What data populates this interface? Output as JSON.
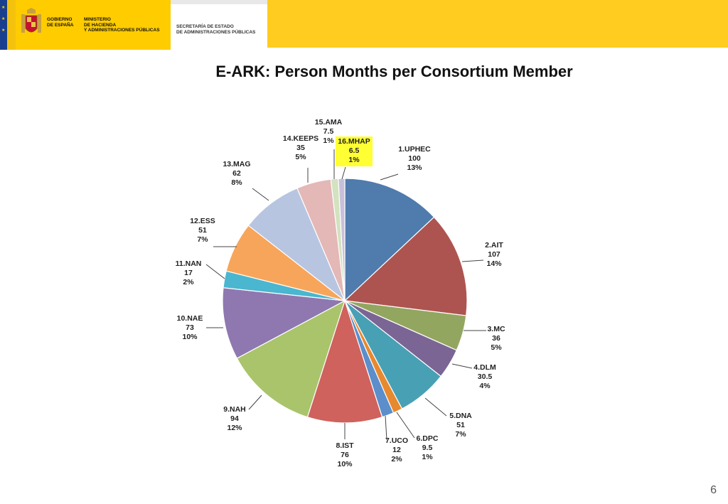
{
  "header": {
    "gov_line1": "GOBIERNO",
    "gov_line2": "DE ESPAÑA",
    "min_line1": "MINISTERIO",
    "min_line2": "DE HACIENDA",
    "min_line3": "Y ADMINISTRACIONES PÚBLICAS",
    "sec_line1": "SECRETARÍA DE ESTADO",
    "sec_line2": "DE ADMINISTRACIONES PÚBLICAS",
    "colors": {
      "yellow": "#ffcc00",
      "red": "#c8102e",
      "eu_blue": "#1a3f8f"
    }
  },
  "page_number": "6",
  "chart_data": {
    "type": "pie",
    "title": "E-ARK: Person Months per Consortium Member",
    "slices": [
      {
        "label": "1.UPHEC",
        "value": 100,
        "pct": "13%",
        "color": "#4f7bad"
      },
      {
        "label": "2.AIT",
        "value": 107,
        "pct": "14%",
        "color": "#ae5450"
      },
      {
        "label": "3.MC",
        "value": 36,
        "pct": "5%",
        "color": "#93a660"
      },
      {
        "label": "4.DLM",
        "value": 30.5,
        "pct": "4%",
        "color": "#7b6594"
      },
      {
        "label": "5.DNA",
        "value": 51,
        "pct": "7%",
        "color": "#48a0b5"
      },
      {
        "label": "6.DPC",
        "value": 9.5,
        "pct": "1%",
        "color": "#e7892f"
      },
      {
        "label": "7.UCO",
        "value": 12,
        "pct": "2%",
        "color": "#5b8ecb"
      },
      {
        "label": "8.IST",
        "value": 76,
        "pct": "10%",
        "color": "#cf625c"
      },
      {
        "label": "9.NAH",
        "value": 94,
        "pct": "12%",
        "color": "#a9c46b"
      },
      {
        "label": "10.NAE",
        "value": 73,
        "pct": "10%",
        "color": "#8f78b0"
      },
      {
        "label": "11.NAN",
        "value": 17,
        "pct": "2%",
        "color": "#4ab6cf"
      },
      {
        "label": "12.ESS",
        "value": 51,
        "pct": "7%",
        "color": "#f7a55a"
      },
      {
        "label": "13.MAG",
        "value": 62,
        "pct": "8%",
        "color": "#b7c5e0"
      },
      {
        "label": "14.KEEPS",
        "value": 35,
        "pct": "5%",
        "color": "#e3b8b7"
      },
      {
        "label": "15.AMA",
        "value": 7.5,
        "pct": "1%",
        "color": "#d3e2bf"
      },
      {
        "label": "16.MHAP",
        "value": 6.5,
        "pct": "1%",
        "color": "#c8c0da",
        "highlight": "#ffff33"
      }
    ]
  }
}
